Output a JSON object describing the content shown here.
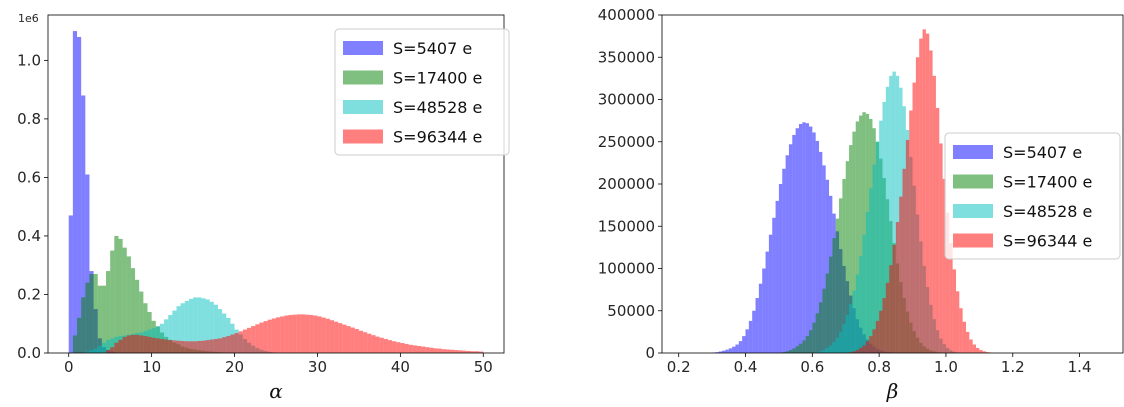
{
  "chart_data": [
    {
      "type": "bar",
      "subtype": "overlaid-histogram",
      "xlabel": "α",
      "ylabel": "",
      "xlim": [
        -2.5,
        52.5
      ],
      "ylim": [
        0,
        1.155
      ],
      "y_multiplier_label": "1e6",
      "xticks": [
        0,
        10,
        20,
        30,
        40,
        50
      ],
      "yticks": [
        0.0,
        0.2,
        0.4,
        0.6,
        0.8,
        1.0
      ],
      "ytick_labels": [
        "0.0",
        "0.2",
        "0.4",
        "0.6",
        "0.8",
        "1.0"
      ],
      "legend_position": "top-right",
      "bin_width": 0.5,
      "series": [
        {
          "name": "S=5407 e",
          "color": "#0000ff",
          "alpha": 0.5,
          "bin_start": 0.0,
          "values": [
            0.47,
            1.1,
            1.08,
            0.88,
            0.61,
            0.28,
            0.15,
            0.05,
            0.02,
            0.01,
            0.005,
            0.002
          ]
        },
        {
          "name": "S=17400 e",
          "color": "#008000",
          "alpha": 0.5,
          "bin_start": 0.0,
          "values": [
            0.0,
            0.06,
            0.12,
            0.19,
            0.24,
            0.27,
            0.27,
            0.23,
            0.23,
            0.28,
            0.35,
            0.4,
            0.39,
            0.36,
            0.33,
            0.29,
            0.25,
            0.21,
            0.17,
            0.14,
            0.11,
            0.09,
            0.07,
            0.055,
            0.045,
            0.035,
            0.03,
            0.022,
            0.018,
            0.014,
            0.012,
            0.01,
            0.008,
            0.006,
            0.005,
            0.004,
            0.003,
            0.002,
            0.002,
            0.001
          ]
        },
        {
          "name": "S=48528 e",
          "color": "#00bfbf",
          "alpha": 0.5,
          "bin_start": 2.0,
          "values": [
            0.005,
            0.01,
            0.015,
            0.025,
            0.035,
            0.045,
            0.05,
            0.055,
            0.058,
            0.06,
            0.062,
            0.065,
            0.068,
            0.07,
            0.075,
            0.08,
            0.085,
            0.092,
            0.1,
            0.115,
            0.13,
            0.145,
            0.16,
            0.17,
            0.178,
            0.185,
            0.19,
            0.19,
            0.187,
            0.183,
            0.175,
            0.165,
            0.15,
            0.135,
            0.12,
            0.1,
            0.08,
            0.063,
            0.048,
            0.035,
            0.025,
            0.017,
            0.011,
            0.007,
            0.004,
            0.002
          ]
        },
        {
          "name": "S=96344 e",
          "color": "#ff0000",
          "alpha": 0.5,
          "bin_start": 4.5,
          "values": [
            0.01,
            0.02,
            0.035,
            0.045,
            0.055,
            0.06,
            0.062,
            0.062,
            0.06,
            0.058,
            0.055,
            0.052,
            0.05,
            0.048,
            0.046,
            0.044,
            0.043,
            0.042,
            0.041,
            0.04,
            0.04,
            0.04,
            0.041,
            0.042,
            0.044,
            0.046,
            0.048,
            0.05,
            0.054,
            0.058,
            0.063,
            0.068,
            0.074,
            0.08,
            0.086,
            0.092,
            0.098,
            0.104,
            0.109,
            0.114,
            0.118,
            0.122,
            0.125,
            0.128,
            0.13,
            0.131,
            0.132,
            0.132,
            0.131,
            0.13,
            0.128,
            0.125,
            0.121,
            0.117,
            0.112,
            0.107,
            0.102,
            0.097,
            0.092,
            0.087,
            0.082,
            0.076,
            0.071,
            0.066,
            0.061,
            0.056,
            0.052,
            0.048,
            0.044,
            0.04,
            0.037,
            0.034,
            0.031,
            0.028,
            0.026,
            0.024,
            0.022,
            0.02,
            0.018,
            0.016,
            0.015,
            0.013,
            0.012,
            0.011,
            0.01,
            0.009,
            0.008,
            0.007,
            0.006,
            0.006,
            0.005
          ]
        }
      ]
    },
    {
      "type": "bar",
      "subtype": "overlaid-histogram",
      "xlabel": "β",
      "ylabel": "",
      "xlim": [
        0.15,
        1.53
      ],
      "ylim": [
        0,
        400000
      ],
      "xticks": [
        0.2,
        0.4,
        0.6,
        0.8,
        1.0,
        1.2,
        1.4
      ],
      "xtick_labels": [
        "0.2",
        "0.4",
        "0.6",
        "0.8",
        "1.0",
        "1.2",
        "1.4"
      ],
      "yticks": [
        0,
        50000,
        100000,
        150000,
        200000,
        250000,
        300000,
        350000,
        400000
      ],
      "ytick_labels": [
        "0",
        "50000",
        "100000",
        "150000",
        "200000",
        "250000",
        "300000",
        "350000",
        "400000"
      ],
      "legend_position": "center-right",
      "bin_width": 0.01,
      "series": [
        {
          "name": "S=5407 e",
          "color": "#0000ff",
          "alpha": 0.5,
          "bin_start": 0.3,
          "values": [
            500,
            1000,
            1800,
            2800,
            4000,
            5500,
            7500,
            10000,
            14000,
            20000,
            28000,
            38000,
            50000,
            65000,
            82000,
            100000,
            120000,
            140000,
            160000,
            180000,
            200000,
            218000,
            234000,
            247000,
            258000,
            266000,
            271000,
            273000,
            272000,
            268000,
            261000,
            251000,
            238000,
            222000,
            205000,
            186000,
            165000,
            144000,
            123000,
            103000,
            85000,
            68000,
            53000,
            40000,
            30000,
            22000,
            16000,
            11000,
            7500,
            5000,
            3200,
            2000,
            1200,
            700,
            400,
            200
          ]
        },
        {
          "name": "S=17400 e",
          "color": "#008000",
          "alpha": 0.5,
          "bin_start": 0.5,
          "values": [
            500,
            1000,
            2000,
            3500,
            5500,
            8000,
            11000,
            15000,
            20000,
            27000,
            36000,
            47000,
            60000,
            76000,
            94000,
            114000,
            136000,
            159000,
            183000,
            206000,
            227000,
            246000,
            262000,
            274000,
            281000,
            285000,
            283000,
            277000,
            266000,
            250000,
            230000,
            207000,
            182000,
            156000,
            130000,
            106000,
            84000,
            65000,
            49000,
            36000,
            26000,
            18000,
            12000,
            8000,
            5000,
            3000,
            1800,
            1000,
            500
          ]
        },
        {
          "name": "S=48528 e",
          "color": "#00bfbf",
          "alpha": 0.5,
          "bin_start": 0.6,
          "values": [
            500,
            1000,
            2000,
            3500,
            6000,
            9000,
            13000,
            18000,
            25000,
            34000,
            45000,
            58000,
            74000,
            93000,
            115000,
            140000,
            167000,
            195000,
            223000,
            250000,
            275000,
            297000,
            315000,
            328000,
            333000,
            328000,
            314000,
            292000,
            264000,
            232000,
            198000,
            164000,
            132000,
            103000,
            78000,
            57000,
            40000,
            27000,
            17000,
            10500,
            6000,
            3200,
            1600,
            800
          ]
        },
        {
          "name": "S=96344 e",
          "color": "#ff0000",
          "alpha": 0.5,
          "bin_start": 0.7,
          "values": [
            500,
            1000,
            2000,
            3500,
            6000,
            9000,
            14000,
            20000,
            28000,
            38000,
            50000,
            65000,
            83000,
            104000,
            128000,
            155000,
            185000,
            218000,
            252000,
            287000,
            320000,
            350000,
            372000,
            383000,
            378000,
            358000,
            328000,
            290000,
            248000,
            206000,
            166000,
            130000,
            99000,
            73000,
            53000,
            37000,
            25000,
            16000,
            10000,
            6000,
            3500,
            2000,
            1000,
            500
          ]
        }
      ]
    }
  ]
}
